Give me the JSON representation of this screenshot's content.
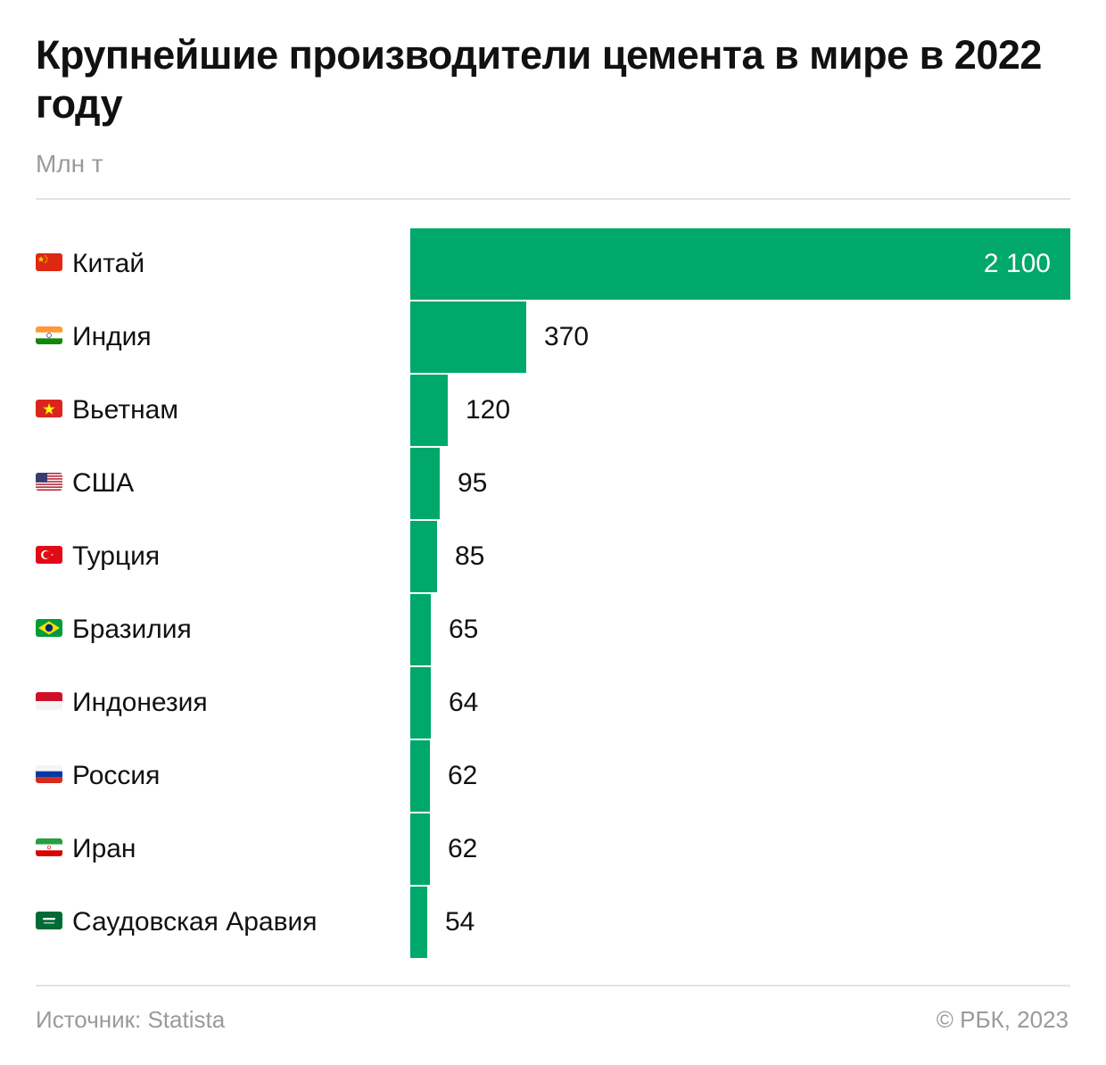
{
  "header": {
    "title": "Крупнейшие производители цемента в мире в 2022 году",
    "subtitle": "Млн т"
  },
  "footer": {
    "source": "Источник: Statista",
    "copyright": "© РБК, 2023"
  },
  "colors": {
    "bar": "#00a86b",
    "value_inside": "#ffffff",
    "value_outside": "#111111"
  },
  "chart_data": {
    "type": "bar",
    "orientation": "horizontal",
    "title": "Крупнейшие производители цемента в мире в 2022 году",
    "unit": "Млн т",
    "categories": [
      "Китай",
      "Индия",
      "Вьетнам",
      "США",
      "Турция",
      "Бразилия",
      "Индонезия",
      "Россия",
      "Иран",
      "Саудовская Аравия"
    ],
    "values": [
      2100,
      370,
      120,
      95,
      85,
      65,
      64,
      62,
      62,
      54
    ],
    "value_labels": [
      "2 100",
      "370",
      "120",
      "95",
      "85",
      "65",
      "64",
      "62",
      "62",
      "54"
    ],
    "flags": [
      "cn-flag-icon",
      "in-flag-icon",
      "vn-flag-icon",
      "us-flag-icon",
      "tr-flag-icon",
      "br-flag-icon",
      "id-flag-icon",
      "ru-flag-icon",
      "ir-flag-icon",
      "sa-flag-icon"
    ],
    "xlim": [
      0,
      2100
    ],
    "grid": false,
    "legend": "none"
  }
}
